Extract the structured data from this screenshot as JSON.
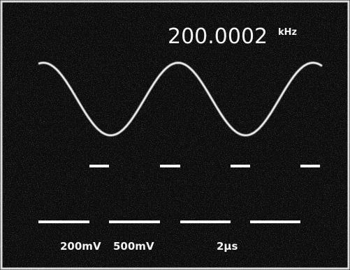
{
  "display": {
    "frequency": "200.0002",
    "frequency_unit": "kHz",
    "channel_1_scale": "200mV",
    "channel_2_scale": "500mV",
    "time_scale": "2μs"
  }
}
